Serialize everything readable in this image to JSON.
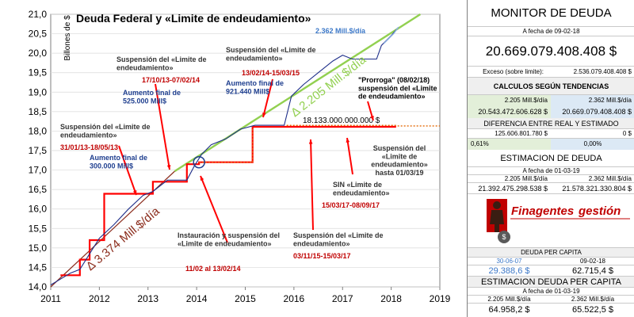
{
  "chart_data": {
    "type": "line",
    "title": "Deuda Federal y «Limite de endeudamiento»",
    "ylabel": "Billones de $",
    "xlim": [
      2011,
      2019
    ],
    "ylim": [
      14.0,
      21.0
    ],
    "x_ticks": [
      "2011",
      "2012",
      "2013",
      "2014",
      "2015",
      "2016",
      "2017",
      "2018",
      "2019"
    ],
    "y_ticks": [
      "14,0",
      "14,5",
      "15,0",
      "15,5",
      "16,0",
      "16,5",
      "17,0",
      "17,5",
      "18,0",
      "18,5",
      "19,0",
      "19,5",
      "20,0",
      "20,5",
      "21,0"
    ],
    "series": [
      {
        "values": [
          [
            2011.0,
            14.05
          ],
          [
            2011.2,
            14.2
          ],
          [
            2011.4,
            14.35
          ],
          [
            2011.6,
            14.45
          ],
          [
            2011.8,
            14.85
          ],
          [
            2012.0,
            15.25
          ],
          [
            2012.3,
            15.6
          ],
          [
            2012.6,
            16.0
          ],
          [
            2012.9,
            16.35
          ],
          [
            2013.1,
            16.45
          ],
          [
            2013.4,
            16.74
          ],
          [
            2013.6,
            16.74
          ],
          [
            2013.8,
            16.74
          ],
          [
            2013.95,
            17.1
          ],
          [
            2014.1,
            17.4
          ],
          [
            2014.3,
            17.65
          ],
          [
            2014.6,
            17.8
          ],
          [
            2014.9,
            18.05
          ],
          [
            2015.2,
            18.15
          ],
          [
            2015.5,
            18.15
          ],
          [
            2015.8,
            18.15
          ],
          [
            2015.95,
            18.9
          ],
          [
            2016.2,
            19.2
          ],
          [
            2016.5,
            19.5
          ],
          [
            2016.8,
            19.8
          ],
          [
            2017.0,
            19.95
          ],
          [
            2017.2,
            19.85
          ],
          [
            2017.5,
            19.85
          ],
          [
            2017.7,
            19.85
          ],
          [
            2017.8,
            20.2
          ],
          [
            2018.0,
            20.45
          ],
          [
            2018.15,
            20.67
          ]
        ]
      },
      {
        "values": [
          [
            2011.2,
            14.3
          ],
          [
            2011.6,
            14.3
          ],
          [
            2011.6,
            14.7
          ],
          [
            2011.8,
            14.7
          ],
          [
            2011.8,
            15.2
          ],
          [
            2012.1,
            15.2
          ],
          [
            2012.1,
            16.39
          ],
          [
            2013.1,
            16.39
          ],
          [
            2013.1,
            16.7
          ],
          [
            2013.8,
            16.7
          ],
          [
            2013.8,
            17.15
          ],
          [
            2014.05,
            17.15
          ],
          [
            2014.05,
            17.2
          ],
          [
            2015.15,
            17.2
          ],
          [
            2015.15,
            18.11
          ],
          [
            2015.85,
            18.11
          ],
          [
            2017.5,
            18.11
          ],
          [
            2018.1,
            18.11
          ]
        ]
      },
      {
        "values": [
          [
            2015.85,
            18.15
          ],
          [
            2017.5,
            18.15
          ],
          [
            2018.1,
            18.15
          ]
        ]
      },
      {
        "values": [
          [
            2011.0,
            14.0
          ],
          [
            2013.55,
            16.97
          ]
        ]
      },
      {
        "values": [
          [
            2013.55,
            16.97
          ],
          [
            2018.6,
            21.0
          ]
        ]
      }
    ],
    "reference_value": 18.133,
    "reference_label": "18.133.000.000.000 $",
    "annotations": [
      {
        "id": "deuda_title",
        "text": "Deuda Federal y «Limite de endeudamiento»"
      },
      {
        "id": "rate_2362",
        "text": "2.362  Mill.$/día"
      },
      {
        "id": "rate_2205",
        "text": "Δ 2.205 Mill.$/día"
      },
      {
        "id": "rate_3374",
        "text": "Δ 3.374 Mill.$/día"
      },
      {
        "id": "susp1_title",
        "text": "Suspensión del «Limite de endeudamiento»"
      },
      {
        "id": "susp1_date",
        "text": "31/01/13-18/05/13"
      },
      {
        "id": "aum1",
        "text": "Aumento  final de 300.000 Mill$"
      },
      {
        "id": "susp2_title",
        "text": "Suspensión del «Limite de endeudamiento»"
      },
      {
        "id": "susp2_date",
        "text": "17/10/13-07/02/14"
      },
      {
        "id": "aum2",
        "text": "Aumento  final de 525.000 Mill$"
      },
      {
        "id": "susp3_title",
        "text": "Suspensión del «Limite de endeudamiento»"
      },
      {
        "id": "susp3_date",
        "text": "13/02/14-15/03/15"
      },
      {
        "id": "aum3",
        "text": "Aumento  final de 921.440 Mill$"
      },
      {
        "id": "prorroga",
        "text": "\"Prorroga\" (08/02/18) suspensión del «Limite de endeudamiento»"
      },
      {
        "id": "susp_hasta",
        "text": "Suspensión del «Limite de endeudamiento» hasta 01/03/19"
      },
      {
        "id": "sin_title",
        "text": "SIN «Limite de endeudamiento»"
      },
      {
        "id": "sin_date",
        "text": "15/03/17-08/09/17"
      },
      {
        "id": "susp4_title",
        "text": "Suspensión del «Limite de endeudamiento»"
      },
      {
        "id": "susp4_date",
        "text": "03/11/15-15/03/17"
      },
      {
        "id": "inst_title",
        "text": "Instauración y suspensión del «Limite de endeudamiento»"
      },
      {
        "id": "inst_date",
        "text": "11/02  al 13/02/14"
      }
    ]
  },
  "colors": {
    "debt_line": "#1f2f8a",
    "debt_line_light": "#8fb4e3",
    "limit": "#ff0000",
    "limit_dotted": "#e46c0a",
    "trend_green": "#92d050",
    "trend_light_green": "#c5e0b4",
    "trend_brown": "#8b2c1c",
    "annotation_red": "#c00000",
    "annotation_blue": "#1f3f8f",
    "annotation_dark": "#333333",
    "panel_blue": "#dce9f5",
    "panel_green": "#e3efd9",
    "logo_red": "#c00000"
  },
  "panel": {
    "monitor_title": "MONITOR DE DEUDA",
    "a_fecha_label": "A fecha de  09-02-18",
    "debt_value": "20.669.079.408.408 $",
    "exceso_label": "Exceso (sobre limite):",
    "exceso_value": "2.536.079.408.408 $",
    "calculos_title": "CALCULOS  SEGÚN TENDENCIAS",
    "rate_a": "2.205  Mill.$/día",
    "rate_b": "2.362  Mill.$/día",
    "calc_a": "20.543.472.606.628 $",
    "calc_b": "20.669.079.408.408 $",
    "diferencia_title": "DIFERENCIA ENTRE REAL Y ESTIMADO",
    "dif_a": "125.606.801.780 $",
    "dif_b": "0 $",
    "pct_a": "0,61%",
    "pct_b": "0,00%",
    "estimacion_title": "ESTIMACION DE DEUDA",
    "est_fecha": "A fecha de  01-03-19",
    "est_rate_a": "2.205  Mill.$/día",
    "est_rate_b": "2.362  Mill.$/día",
    "est_a": "21.392.475.298.538 $",
    "est_b": "21.578.321.330.804 $",
    "logo_left": "Finagentes",
    "logo_right": "gestión",
    "capita_title": "DEUDA PER CAPITA",
    "capita_date_a": "30-06-07",
    "capita_date_b": "09-02-18",
    "capita_a": "29.388,6 $",
    "capita_b": "62.715,4 $",
    "est_capita_title": "ESTIMACION DEUDA PER CAPITA",
    "est_capita_fecha": "A fecha de  01-03-19",
    "est_capita_rate_a": "2.205  Mill.$/día",
    "est_capita_rate_b": "2.362  Mill.$/día",
    "est_capita_a": "64.958,2 $",
    "est_capita_b": "65.522,5 $"
  }
}
